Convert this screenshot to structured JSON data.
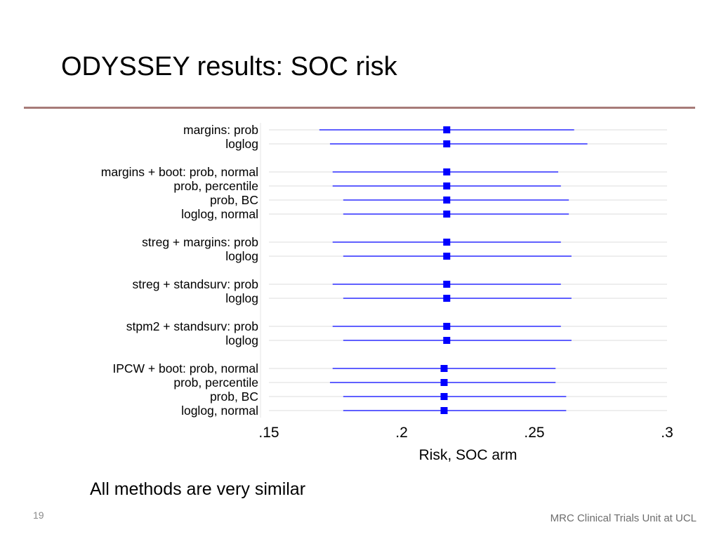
{
  "slide": {
    "title": "ODYSSEY results: SOC risk",
    "note": "All methods are very similar",
    "page_number": "19",
    "footer": "MRC Clinical Trials Unit at UCL"
  },
  "colors": {
    "series": "#0000ff",
    "title_rule": "#a77b78",
    "grid": "#dcdcdc"
  },
  "chart_data": {
    "type": "scatter",
    "xlabel": "Risk, SOC arm",
    "xlim": [
      0.15,
      0.3
    ],
    "xticks": [
      {
        "value": 0.15,
        "label": ".15"
      },
      {
        "value": 0.2,
        "label": ".2"
      },
      {
        "value": 0.25,
        "label": ".25"
      },
      {
        "value": 0.3,
        "label": ".3"
      }
    ],
    "groups": [
      {
        "rows": [
          {
            "label": "margins: prob",
            "estimate": 0.217,
            "lower": 0.169,
            "upper": 0.265
          },
          {
            "label": "loglog",
            "estimate": 0.217,
            "lower": 0.173,
            "upper": 0.27
          }
        ]
      },
      {
        "rows": [
          {
            "label": "margins + boot: prob, normal",
            "estimate": 0.217,
            "lower": 0.174,
            "upper": 0.259
          },
          {
            "label": "prob, percentile",
            "estimate": 0.217,
            "lower": 0.174,
            "upper": 0.26
          },
          {
            "label": "prob, BC",
            "estimate": 0.217,
            "lower": 0.178,
            "upper": 0.263
          },
          {
            "label": "loglog, normal",
            "estimate": 0.217,
            "lower": 0.178,
            "upper": 0.263
          }
        ]
      },
      {
        "rows": [
          {
            "label": "streg + margins: prob",
            "estimate": 0.217,
            "lower": 0.174,
            "upper": 0.26
          },
          {
            "label": "loglog",
            "estimate": 0.217,
            "lower": 0.178,
            "upper": 0.264
          }
        ]
      },
      {
        "rows": [
          {
            "label": "streg + standsurv: prob",
            "estimate": 0.217,
            "lower": 0.174,
            "upper": 0.26
          },
          {
            "label": "loglog",
            "estimate": 0.217,
            "lower": 0.178,
            "upper": 0.264
          }
        ]
      },
      {
        "rows": [
          {
            "label": "stpm2 + standsurv: prob",
            "estimate": 0.217,
            "lower": 0.174,
            "upper": 0.26
          },
          {
            "label": "loglog",
            "estimate": 0.217,
            "lower": 0.178,
            "upper": 0.264
          }
        ]
      },
      {
        "rows": [
          {
            "label": "IPCW + boot: prob, normal",
            "estimate": 0.216,
            "lower": 0.174,
            "upper": 0.258
          },
          {
            "label": "prob, percentile",
            "estimate": 0.216,
            "lower": 0.173,
            "upper": 0.258
          },
          {
            "label": "prob, BC",
            "estimate": 0.216,
            "lower": 0.178,
            "upper": 0.262
          },
          {
            "label": "loglog, normal",
            "estimate": 0.216,
            "lower": 0.178,
            "upper": 0.262
          }
        ]
      }
    ]
  }
}
